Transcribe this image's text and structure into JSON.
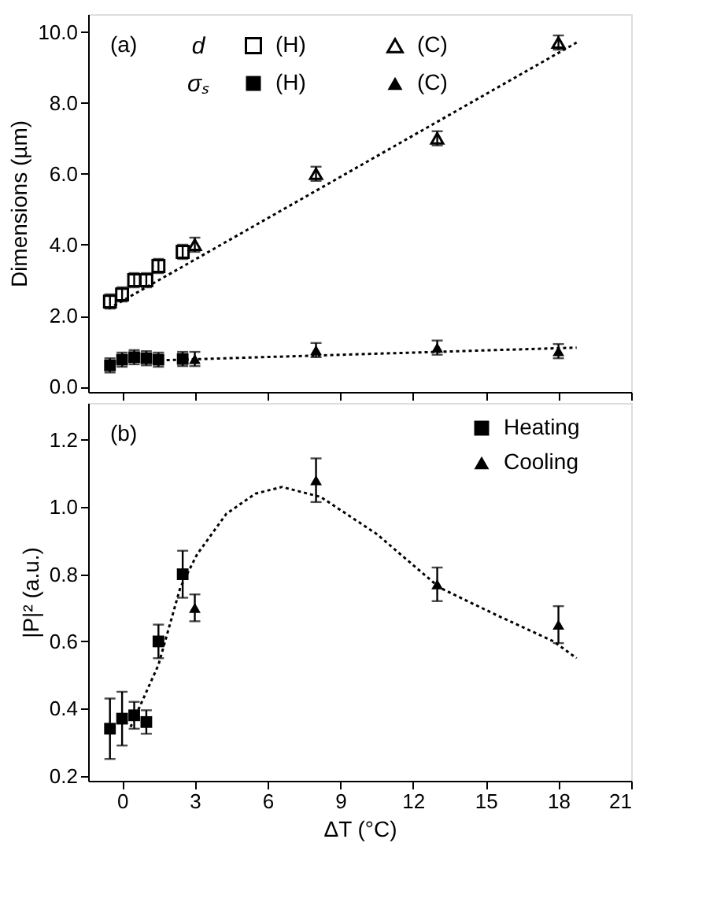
{
  "chart_data": [
    {
      "type": "scatter",
      "ylabel": "Dimensions (µm)",
      "annotations": [
        "(a)",
        "d",
        "σₛ"
      ],
      "xlim": [
        -1.4,
        21
      ],
      "xticks": [
        0,
        3,
        6,
        9,
        12,
        15,
        18,
        21
      ],
      "ylim": [
        -0.15,
        10.5
      ],
      "yticks": [
        {
          "value": 0,
          "label": "0.0"
        },
        {
          "value": 2,
          "label": "2.0"
        },
        {
          "value": 4,
          "label": "4.0"
        },
        {
          "value": 6,
          "label": "6.0"
        },
        {
          "value": 8,
          "label": "8.0"
        },
        {
          "value": 10,
          "label": "10.0"
        }
      ],
      "tick_labels": "y",
      "grid": false,
      "legend": "top left",
      "series": [
        {
          "name": "(H)",
          "color": "#000000",
          "marker": "square",
          "x": [
            -0.5,
            0,
            0.5,
            1,
            1.5,
            2.5
          ],
          "values": [
            2.4,
            2.6,
            3.0,
            3.0,
            3.4,
            3.8
          ],
          "errors": [
            0.2,
            0.2,
            0.2,
            0.2,
            0.2,
            0.2
          ]
        },
        {
          "name": "(C)",
          "color": "#000000",
          "marker": "triangle",
          "x": [
            3,
            8,
            13,
            18
          ],
          "values": [
            4.0,
            6.0,
            7.0,
            9.7
          ],
          "errors": [
            0.2,
            0.2,
            0.2,
            0.2
          ]
        },
        {
          "name": "(H)",
          "color": "#000000",
          "marker": "square",
          "x": [
            -0.5,
            0,
            0.5,
            1,
            1.5,
            2.5
          ],
          "values": [
            0.6,
            0.76,
            0.83,
            0.8,
            0.76,
            0.78
          ],
          "errors": [
            0.2,
            0.2,
            0.2,
            0.2,
            0.2,
            0.2
          ]
        },
        {
          "name": "(C)",
          "color": "#000000",
          "marker": "triangle",
          "x": [
            3,
            8,
            13,
            18
          ],
          "values": [
            0.78,
            1.03,
            1.1,
            1.0
          ],
          "errors": [
            0.2,
            0.2,
            0.2,
            0.2
          ]
        },
        {
          "type": "line",
          "color": "#000000",
          "line_style": "dotted",
          "x": [
            -0.55,
            18.75
          ],
          "values": [
            2.2,
            9.7
          ]
        },
        {
          "type": "line",
          "color": "#000000",
          "line_style": "dotted",
          "x": [
            -0.5,
            18.75
          ],
          "values": [
            0.7,
            1.1
          ]
        }
      ]
    },
    {
      "type": "scatter",
      "xlabel": "ΔT (°C)",
      "ylabel": "|P|² (a.u.)",
      "annotations": [
        "(b)"
      ],
      "xlim": [
        -1.4,
        21
      ],
      "xticks": [
        0,
        3,
        6,
        9,
        12,
        15,
        18,
        21
      ],
      "ylim": [
        0.185,
        1.31
      ],
      "yticks": [
        0.2,
        0.4,
        0.6,
        0.8,
        {
          "value": 1,
          "label": "1.0"
        },
        1.2
      ],
      "grid": false,
      "legend": "top right",
      "series": [
        {
          "name": "Heating",
          "color": "#000000",
          "marker": "square",
          "x": [
            -0.5,
            0,
            0.5,
            1,
            1.5,
            2.5
          ],
          "values": [
            0.34,
            0.37,
            0.38,
            0.36,
            0.6,
            0.8
          ],
          "errors": [
            [
              0.25,
              0.43
            ],
            [
              0.29,
              0.45
            ],
            0.04,
            0.035,
            0.05,
            0.07
          ]
        },
        {
          "name": "Cooling",
          "color": "#000000",
          "marker": "triangle",
          "x": [
            3,
            8,
            13,
            18
          ],
          "values": [
            0.7,
            1.08,
            0.77,
            0.65
          ],
          "errors": [
            0.04,
            0.065,
            0.05,
            0.055
          ]
        },
        {
          "type": "line",
          "color": "#000000",
          "line_style": "dotted",
          "x": [
            0.35,
            1.5,
            2.4,
            3.1,
            4.3,
            5.5,
            6.6,
            8.2,
            10.5,
            13.1,
            15.4,
            17.8,
            18.75
          ],
          "values": [
            0.345,
            0.53,
            0.76,
            0.86,
            0.98,
            1.04,
            1.06,
            1.03,
            0.92,
            0.76,
            0.68,
            0.6,
            0.55
          ]
        }
      ]
    }
  ]
}
